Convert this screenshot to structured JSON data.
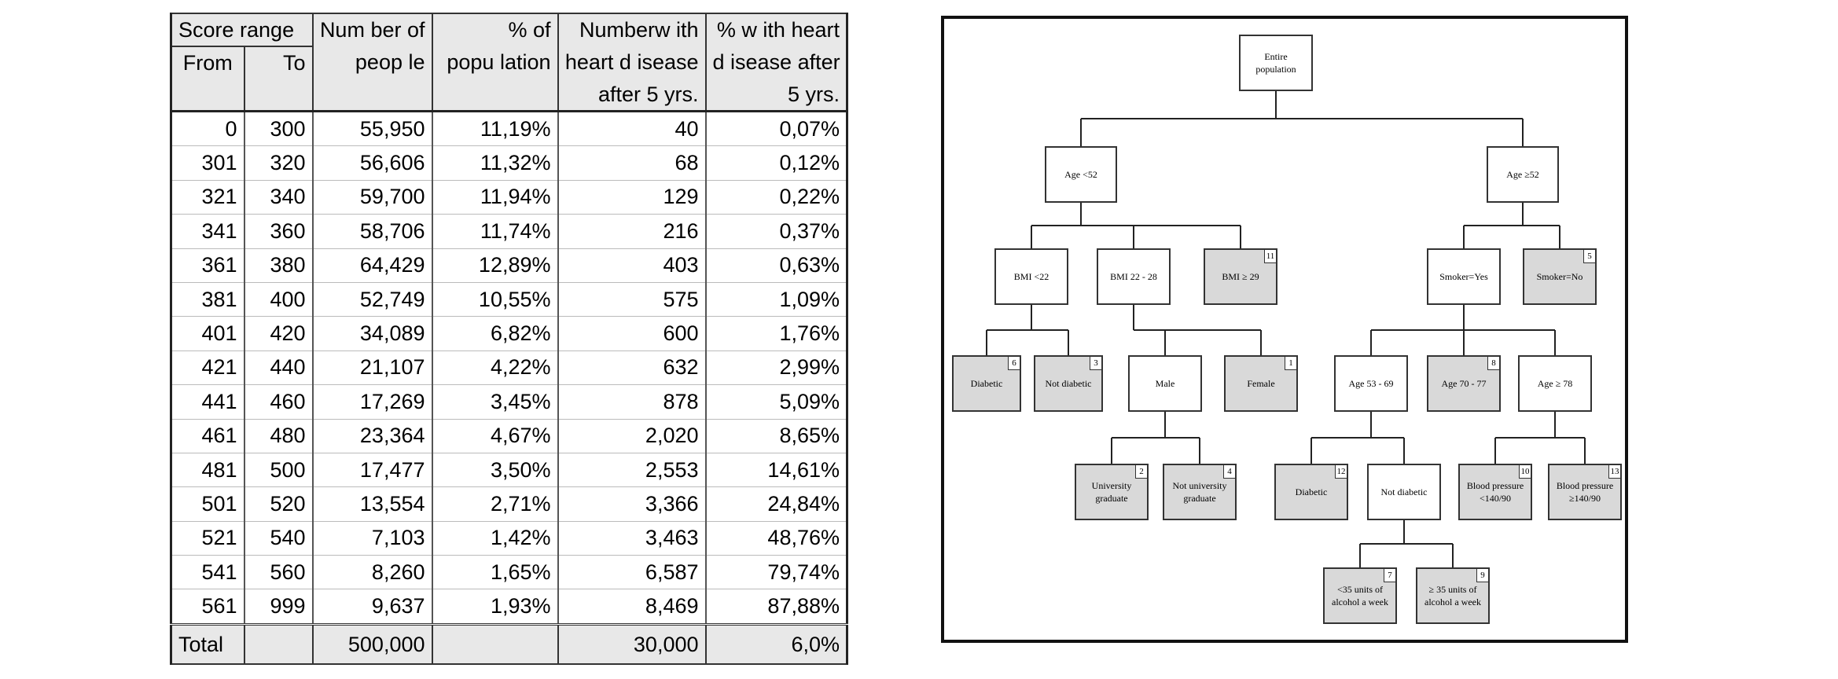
{
  "table": {
    "headers": {
      "score_range": "Score range",
      "from": "From",
      "to": "To",
      "number_of_people": [
        "Num ber of",
        "peop le"
      ],
      "pct_population": [
        "% of",
        "popu lation"
      ],
      "number_with_hd": [
        "Numberw ith",
        "heart d isease",
        "after 5 yrs."
      ],
      "pct_with_hd": [
        "% w ith heart",
        "d isease after",
        "5 yrs."
      ]
    },
    "rows": [
      {
        "from": "0",
        "to": "300",
        "people": "55,950",
        "pct_pop": "11,19%",
        "with_hd": "40",
        "pct_hd": "0,07%"
      },
      {
        "from": "301",
        "to": "320",
        "people": "56,606",
        "pct_pop": "11,32%",
        "with_hd": "68",
        "pct_hd": "0,12%"
      },
      {
        "from": "321",
        "to": "340",
        "people": "59,700",
        "pct_pop": "11,94%",
        "with_hd": "129",
        "pct_hd": "0,22%"
      },
      {
        "from": "341",
        "to": "360",
        "people": "58,706",
        "pct_pop": "11,74%",
        "with_hd": "216",
        "pct_hd": "0,37%"
      },
      {
        "from": "361",
        "to": "380",
        "people": "64,429",
        "pct_pop": "12,89%",
        "with_hd": "403",
        "pct_hd": "0,63%"
      },
      {
        "from": "381",
        "to": "400",
        "people": "52,749",
        "pct_pop": "10,55%",
        "with_hd": "575",
        "pct_hd": "1,09%"
      },
      {
        "from": "401",
        "to": "420",
        "people": "34,089",
        "pct_pop": "6,82%",
        "with_hd": "600",
        "pct_hd": "1,76%"
      },
      {
        "from": "421",
        "to": "440",
        "people": "21,107",
        "pct_pop": "4,22%",
        "with_hd": "632",
        "pct_hd": "2,99%"
      },
      {
        "from": "441",
        "to": "460",
        "people": "17,269",
        "pct_pop": "3,45%",
        "with_hd": "878",
        "pct_hd": "5,09%"
      },
      {
        "from": "461",
        "to": "480",
        "people": "23,364",
        "pct_pop": "4,67%",
        "with_hd": "2,020",
        "pct_hd": "8,65%"
      },
      {
        "from": "481",
        "to": "500",
        "people": "17,477",
        "pct_pop": "3,50%",
        "with_hd": "2,553",
        "pct_hd": "14,61%"
      },
      {
        "from": "501",
        "to": "520",
        "people": "13,554",
        "pct_pop": "2,71%",
        "with_hd": "3,366",
        "pct_hd": "24,84%"
      },
      {
        "from": "521",
        "to": "540",
        "people": "7,103",
        "pct_pop": "1,42%",
        "with_hd": "3,463",
        "pct_hd": "48,76%"
      },
      {
        "from": "541",
        "to": "560",
        "people": "8,260",
        "pct_pop": "1,65%",
        "with_hd": "6,587",
        "pct_hd": "79,74%"
      },
      {
        "from": "561",
        "to": "999",
        "people": "9,637",
        "pct_pop": "1,93%",
        "with_hd": "8,469",
        "pct_hd": "87,88%"
      }
    ],
    "total": {
      "label": "Total",
      "people": "500,000",
      "with_hd": "30,000",
      "pct_hd": "6,0%"
    }
  },
  "tree": {
    "nodes": {
      "root": {
        "lines": [
          "Entire",
          "population"
        ]
      },
      "age_lt_52": {
        "lines": [
          "Age <52"
        ]
      },
      "age_ge_52": {
        "lines": [
          "Age ≥52"
        ]
      },
      "bmi_lt_22": {
        "lines": [
          "BMI <22"
        ]
      },
      "bmi_22_28": {
        "lines": [
          "BMI 22 - 28"
        ]
      },
      "bmi_ge_29": {
        "lines": [
          "BMI ≥ 29"
        ],
        "tag": "11"
      },
      "smoker_yes": {
        "lines": [
          "Smoker=Yes"
        ]
      },
      "smoker_no": {
        "lines": [
          "Smoker=No"
        ],
        "tag": "5"
      },
      "diabetic_a": {
        "lines": [
          "Diabetic"
        ],
        "tag": "6"
      },
      "not_diabetic_a": {
        "lines": [
          "Not diabetic"
        ],
        "tag": "3"
      },
      "male": {
        "lines": [
          "Male"
        ]
      },
      "female": {
        "lines": [
          "Female"
        ],
        "tag": "1"
      },
      "age_53_69": {
        "lines": [
          "Age 53 - 69"
        ]
      },
      "age_70_77": {
        "lines": [
          "Age 70 - 77"
        ],
        "tag": "8"
      },
      "age_ge_78": {
        "lines": [
          "Age ≥ 78"
        ]
      },
      "university_grad": {
        "lines": [
          "University",
          "graduate"
        ],
        "tag": "2"
      },
      "not_university_grad": {
        "lines": [
          "Not university",
          "graduate"
        ],
        "tag": "4"
      },
      "diabetic_b": {
        "lines": [
          "Diabetic"
        ],
        "tag": "12"
      },
      "not_diabetic_b": {
        "lines": [
          "Not diabetic"
        ]
      },
      "bp_lt": {
        "lines": [
          "Blood pressure",
          "<140/90"
        ],
        "tag": "10"
      },
      "bp_ge": {
        "lines": [
          "Blood pressure",
          "≥140/90"
        ],
        "tag": "13"
      },
      "alcohol_lt_35": {
        "lines": [
          "<35 units of",
          "alcohol a week"
        ],
        "tag": "7"
      },
      "alcohol_ge_35": {
        "lines": [
          "≥ 35 units of",
          "alcohol a week"
        ],
        "tag": "9"
      }
    }
  }
}
